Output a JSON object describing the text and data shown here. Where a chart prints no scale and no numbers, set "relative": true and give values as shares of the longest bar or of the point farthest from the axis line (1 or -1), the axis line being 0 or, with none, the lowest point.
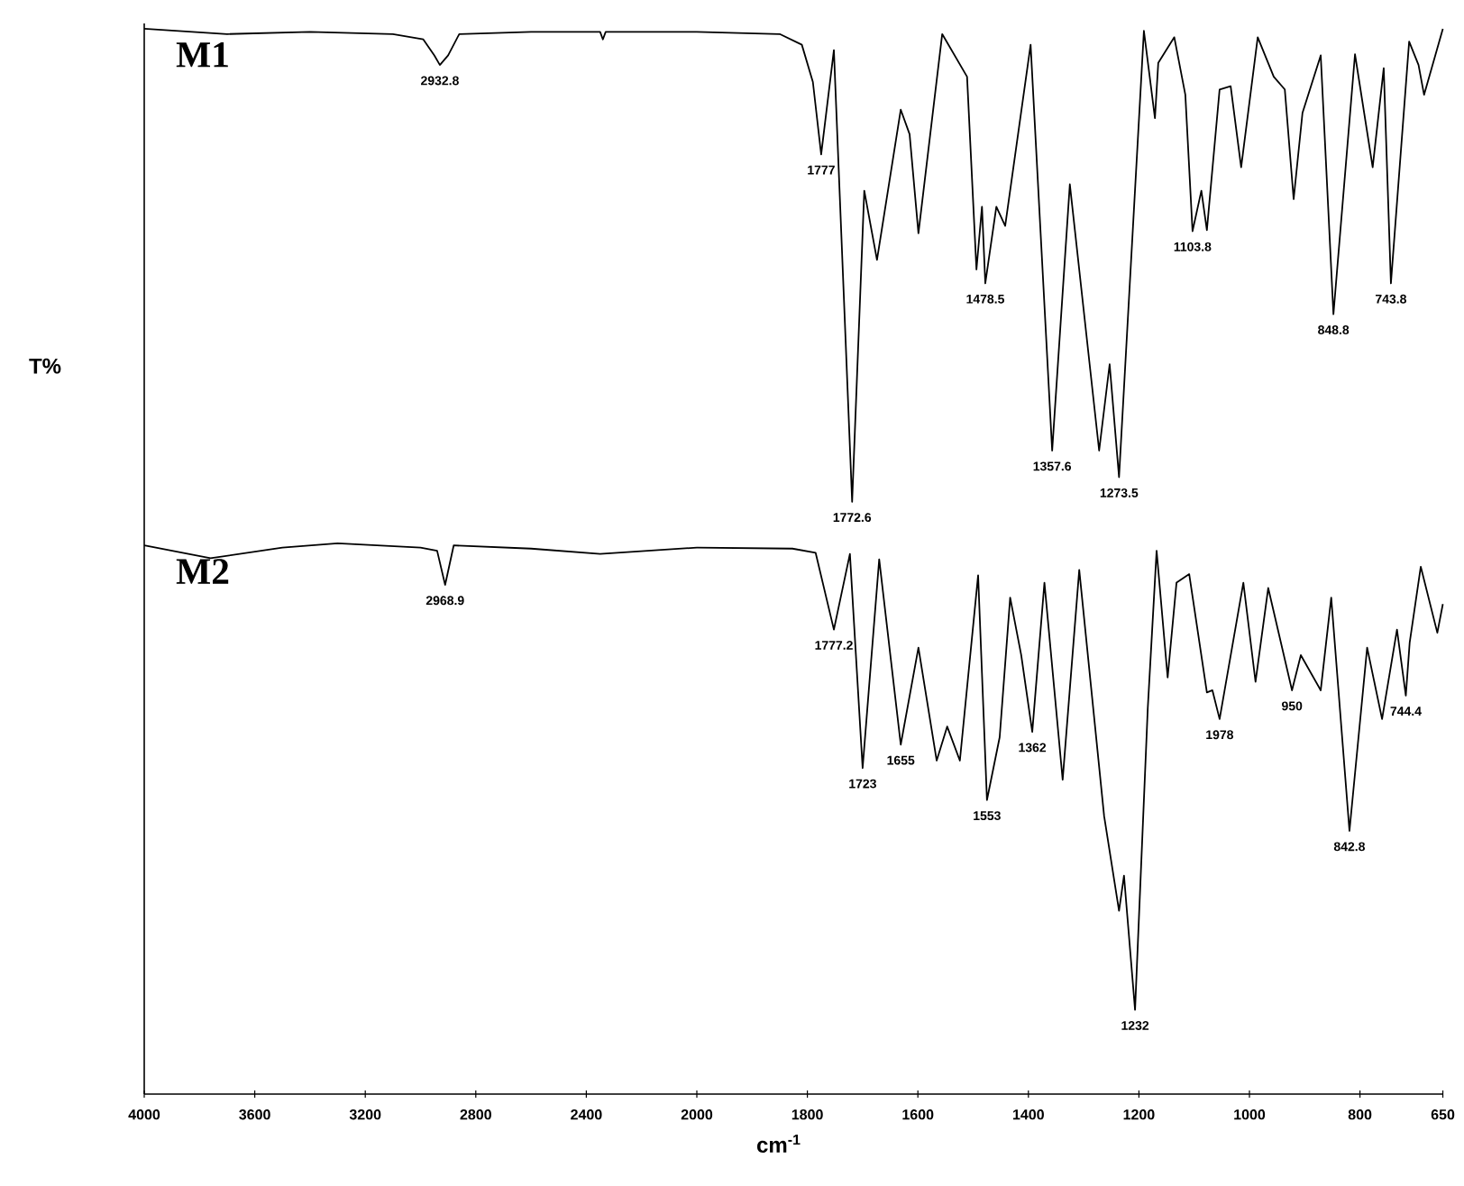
{
  "chart_data": [
    {
      "type": "line",
      "relative": true,
      "ylabel": "T%",
      "xlim": [
        4000,
        2000
      ],
      "xticks": [
        4000,
        3600,
        3200,
        2800,
        2400,
        2000
      ],
      "tick_labels": "x",
      "series": [
        {
          "name": "M1",
          "color": "#000000",
          "x": [
            4000,
            3700,
            3400,
            3100,
            2990,
            2950,
            2930,
            2900,
            2860,
            2600,
            2350,
            2340,
            2330,
            2000
          ],
          "values": [
            1.0,
            0.995,
            0.997,
            0.995,
            0.99,
            0.975,
            0.966,
            0.975,
            0.995,
            0.997,
            0.997,
            0.99,
            0.997,
            0.997
          ]
        },
        {
          "name": "M2",
          "color": "#000000",
          "x": [
            4000,
            3760,
            3500,
            3300,
            3000,
            2940,
            2911,
            2880,
            2600,
            2350,
            2000
          ],
          "values": [
            0.515,
            0.503,
            0.513,
            0.517,
            0.513,
            0.51,
            0.478,
            0.515,
            0.512,
            0.507,
            0.513
          ]
        }
      ],
      "annotations": [
        {
          "text": "2932.8",
          "x": 2930,
          "y": 0.966
        },
        {
          "text": "2968.9",
          "x": 2911,
          "y": 0.478
        }
      ]
    },
    {
      "type": "line",
      "relative": true,
      "xlabel": "cm$^{-1}$",
      "xlim": [
        2000,
        650
      ],
      "xticks": [
        1800,
        1600,
        1400,
        1200,
        1000,
        800,
        650
      ],
      "tick_labels": "x",
      "series": [
        {
          "color": "#000000",
          "x": [
            2000,
            1850,
            1810,
            1790,
            1775,
            1752,
            1719,
            1697,
            1674,
            1631,
            1615,
            1599,
            1556,
            1511,
            1494,
            1484,
            1478,
            1458,
            1442,
            1396,
            1357,
            1325,
            1272,
            1253,
            1236,
            1191,
            1171,
            1165,
            1136,
            1116,
            1103,
            1087,
            1077,
            1054,
            1034,
            1015,
            985,
            956,
            936,
            920,
            904,
            871,
            848,
            809,
            777,
            757,
            744,
            711,
            694,
            684,
            650
          ],
          "values": [
            0.997,
            0.995,
            0.985,
            0.95,
            0.882,
            0.98,
            0.556,
            0.848,
            0.783,
            0.924,
            0.901,
            0.808,
            0.995,
            0.955,
            0.774,
            0.833,
            0.761,
            0.833,
            0.815,
            0.985,
            0.604,
            0.854,
            0.604,
            0.685,
            0.579,
            0.998,
            0.916,
            0.968,
            0.992,
            0.938,
            0.81,
            0.848,
            0.811,
            0.943,
            0.946,
            0.87,
            0.992,
            0.955,
            0.943,
            0.84,
            0.921,
            0.975,
            0.732,
            0.976,
            0.87,
            0.963,
            0.761,
            0.988,
            0.966,
            0.938,
            1.0
          ]
        },
        {
          "color": "#000000",
          "x": [
            2000,
            1827,
            1785,
            1752,
            1723,
            1700,
            1670,
            1631,
            1599,
            1566,
            1547,
            1524,
            1491,
            1475,
            1452,
            1433,
            1413,
            1393,
            1371,
            1338,
            1308,
            1263,
            1236,
            1227,
            1207,
            1184,
            1168,
            1148,
            1132,
            1109,
            1077,
            1067,
            1054,
            1011,
            989,
            966,
            923,
            907,
            871,
            852,
            819,
            787,
            760,
            733,
            717,
            710,
            690,
            660,
            650
          ],
          "values": [
            0.513,
            0.512,
            0.508,
            0.436,
            0.507,
            0.306,
            0.502,
            0.328,
            0.419,
            0.313,
            0.345,
            0.313,
            0.487,
            0.276,
            0.335,
            0.466,
            0.412,
            0.34,
            0.48,
            0.295,
            0.492,
            0.261,
            0.172,
            0.205,
            0.079,
            0.362,
            0.51,
            0.391,
            0.48,
            0.488,
            0.377,
            0.379,
            0.352,
            0.48,
            0.387,
            0.475,
            0.379,
            0.412,
            0.379,
            0.466,
            0.247,
            0.419,
            0.352,
            0.436,
            0.374,
            0.424,
            0.495,
            0.433,
            0.46
          ]
        }
      ],
      "annotations": [
        {
          "text": "1777",
          "x": 1775,
          "y": 0.882
        },
        {
          "text": "1772.6",
          "x": 1719,
          "y": 0.556
        },
        {
          "text": "1478.5",
          "x": 1478,
          "y": 0.761
        },
        {
          "text": "1357.6",
          "x": 1357,
          "y": 0.604
        },
        {
          "text": "1273.5",
          "x": 1236,
          "y": 0.579
        },
        {
          "text": "1103.8",
          "x": 1103,
          "y": 0.81
        },
        {
          "text": "848.8",
          "x": 848,
          "y": 0.732
        },
        {
          "text": "743.8",
          "x": 744,
          "y": 0.761
        },
        {
          "text": "1777.2",
          "x": 1752,
          "y": 0.436
        },
        {
          "text": "1723",
          "x": 1700,
          "y": 0.306
        },
        {
          "text": "1655",
          "x": 1631,
          "y": 0.328
        },
        {
          "text": "1553",
          "x": 1475,
          "y": 0.276
        },
        {
          "text": "1362",
          "x": 1393,
          "y": 0.34
        },
        {
          "text": "1232",
          "x": 1207,
          "y": 0.079
        },
        {
          "text": "1978",
          "x": 1054,
          "y": 0.352
        },
        {
          "text": "950",
          "x": 923,
          "y": 0.379
        },
        {
          "text": "842.8",
          "x": 819,
          "y": 0.247
        },
        {
          "text": "744.4",
          "x": 717,
          "y": 0.374
        }
      ]
    }
  ]
}
